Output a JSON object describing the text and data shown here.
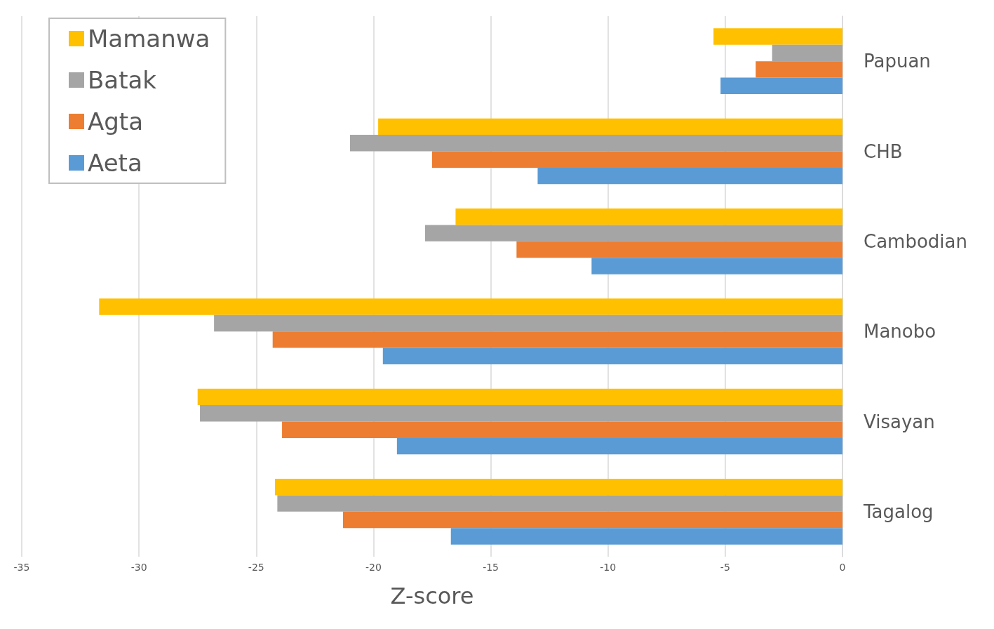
{
  "chart_data": {
    "type": "bar",
    "orientation": "horizontal",
    "xlabel": "Z-score",
    "categories": [
      "Papuan",
      "CHB",
      "Cambodian",
      "Manobo",
      "Visayan",
      "Tagalog"
    ],
    "series": [
      {
        "name": "Mamanwa",
        "color": "#ffc000",
        "values": [
          -5.5,
          -19.8,
          -16.5,
          -31.7,
          -27.5,
          -24.2
        ]
      },
      {
        "name": "Batak",
        "color": "#a5a5a5",
        "values": [
          -3.0,
          -21.0,
          -17.8,
          -26.8,
          -27.4,
          -24.1
        ]
      },
      {
        "name": "Agta",
        "color": "#ed7d31",
        "values": [
          -3.7,
          -17.5,
          -13.9,
          -24.3,
          -23.9,
          -21.3
        ]
      },
      {
        "name": "Aeta",
        "color": "#5b9bd5",
        "values": [
          -5.2,
          -13.0,
          -10.7,
          -19.6,
          -19.0,
          -16.7
        ]
      }
    ],
    "xlim": [
      -35,
      0
    ],
    "xticks": [
      -35,
      -30,
      -25,
      -20,
      -15,
      -10,
      -5,
      0
    ],
    "grid": "x",
    "legend": "top left"
  }
}
